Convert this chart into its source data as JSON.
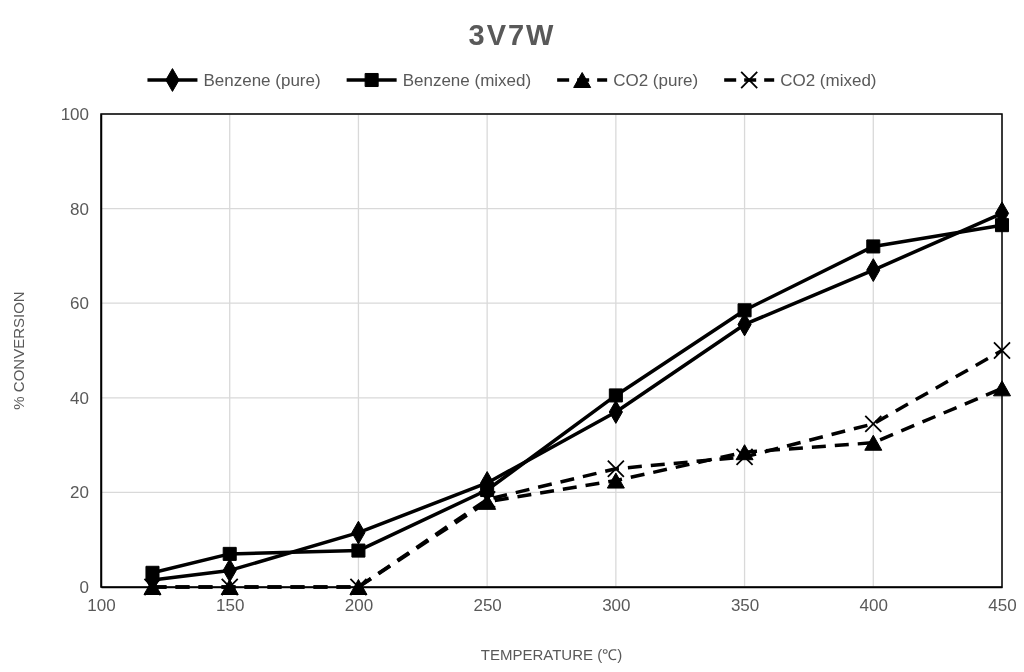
{
  "chart_data": {
    "type": "line",
    "title": "3V7W",
    "xlabel": "TEMPERATURE (℃)",
    "ylabel": "% CONVERSION",
    "x": [
      120,
      150,
      200,
      250,
      300,
      350,
      400,
      450
    ],
    "series": [
      {
        "name": "Benzene (pure)",
        "color": "#000000",
        "marker": "diamond",
        "line_style": "solid",
        "values": [
          1.5,
          3.5,
          11.5,
          22,
          37,
          55.5,
          67,
          79
        ]
      },
      {
        "name": "Benzene (mixed)",
        "color": "#000000",
        "marker": "square",
        "line_style": "solid",
        "values": [
          3,
          7,
          7.7,
          20.5,
          40.5,
          58.5,
          72,
          76.5
        ]
      },
      {
        "name": "CO2 (pure)",
        "color": "#000000",
        "marker": "triangle",
        "line_style": "dashed",
        "values": [
          0,
          0,
          0,
          18,
          22.5,
          28.5,
          30.5,
          42
        ]
      },
      {
        "name": "CO2 (mixed)",
        "color": "#000000",
        "marker": "cross",
        "line_style": "dashed",
        "values": [
          0,
          0,
          0,
          18.5,
          25,
          27.5,
          34.5,
          50
        ]
      }
    ],
    "xlim": [
      100,
      450
    ],
    "xticks": [
      100,
      150,
      200,
      250,
      300,
      350,
      400,
      450
    ],
    "ylim": [
      0,
      100
    ],
    "yticks": [
      0,
      20,
      40,
      60,
      80,
      100
    ],
    "grid": true,
    "legend": "top"
  }
}
